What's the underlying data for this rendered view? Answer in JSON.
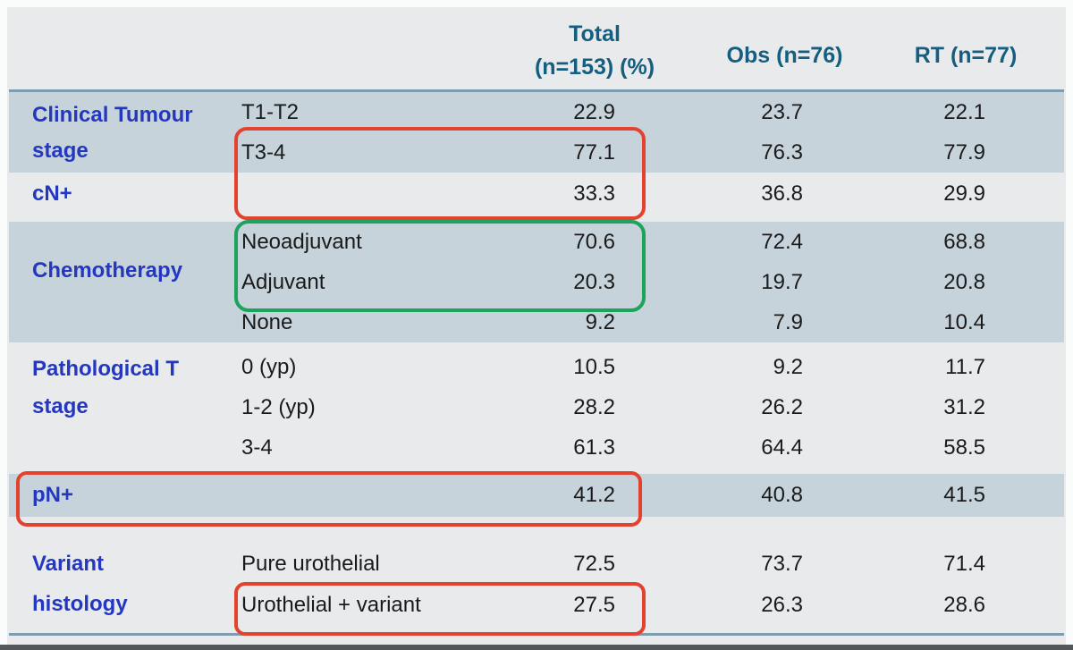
{
  "header": {
    "total_line1": "Total",
    "total_line2": "(n=153) (%)",
    "obs": "Obs (n=76)",
    "rt": "RT (n=77)"
  },
  "groups": [
    {
      "label": "Clinical Tumour stage",
      "rows": [
        {
          "sub": "T1-T2",
          "total": "22.9",
          "obs": "23.7",
          "rt": "22.1"
        },
        {
          "sub": "T3-4",
          "total": "77.1",
          "obs": "76.3",
          "rt": "77.9"
        }
      ]
    },
    {
      "label": "cN+",
      "rows": [
        {
          "sub": "",
          "total": "33.3",
          "obs": "36.8",
          "rt": "29.9"
        }
      ]
    },
    {
      "label": "Chemotherapy",
      "rows": [
        {
          "sub": "Neoadjuvant",
          "total": "70.6",
          "obs": "72.4",
          "rt": "68.8"
        },
        {
          "sub": "Adjuvant",
          "total": "20.3",
          "obs": "19.7",
          "rt": "20.8"
        },
        {
          "sub": "None",
          "total": "9.2",
          "obs": "7.9",
          "rt": "10.4"
        }
      ]
    },
    {
      "label": "Pathological T stage",
      "rows": [
        {
          "sub": "0 (yp)",
          "total": "10.5",
          "obs": "9.2",
          "rt": "11.7"
        },
        {
          "sub": "1-2 (yp)",
          "total": "28.2",
          "obs": "26.2",
          "rt": "31.2"
        },
        {
          "sub": "3-4",
          "total": "61.3",
          "obs": "64.4",
          "rt": "58.5"
        }
      ]
    },
    {
      "label": "pN+",
      "rows": [
        {
          "sub": "",
          "total": "41.2",
          "obs": "40.8",
          "rt": "41.5"
        }
      ]
    },
    {
      "label": "Variant histology",
      "rows": [
        {
          "sub": "Pure urothelial",
          "total": "72.5",
          "obs": "73.7",
          "rt": "71.4"
        },
        {
          "sub": "Urothelial + variant",
          "total": "27.5",
          "obs": "26.3",
          "rt": "28.6"
        }
      ]
    }
  ],
  "annotations": [
    {
      "shape": "rounded-rect",
      "color": "#e2422e",
      "around": "T3-4 and cN+ rows, sublabel and Total columns"
    },
    {
      "shape": "rounded-rect",
      "color": "#1ea35e",
      "around": "Neoadjuvant and Adjuvant rows, sublabel and Total columns"
    },
    {
      "shape": "rounded-rect",
      "color": "#e2422e",
      "around": "pN+ row through Total column"
    },
    {
      "shape": "rounded-rect",
      "color": "#e2422e",
      "around": "Urothelial + variant row, sublabel and Total columns"
    }
  ],
  "colors": {
    "band_blue": "#c7d3db",
    "background": "#e8eaec",
    "group_label_blue": "#2337c0",
    "header_teal": "#155e80",
    "annotation_red": "#e2422e",
    "annotation_green": "#1ea35e"
  }
}
